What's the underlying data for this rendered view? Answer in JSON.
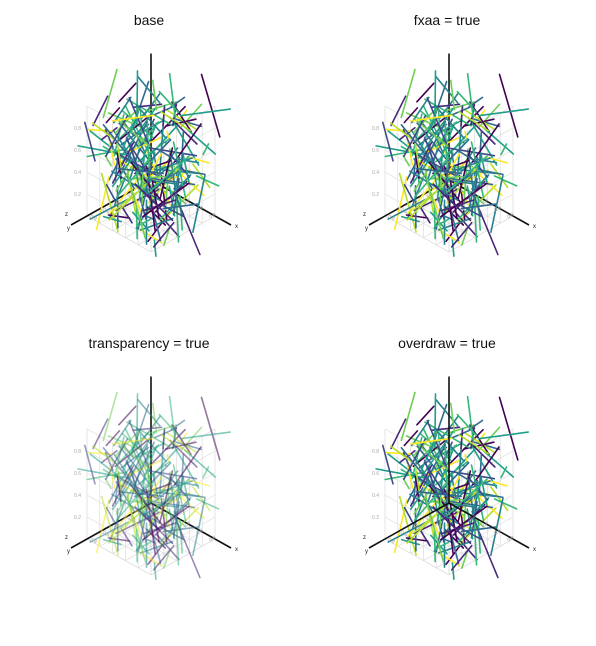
{
  "chart_data": [
    {
      "type": "line3d",
      "title": "base",
      "axes": {
        "x_label": "x",
        "y_label": "y",
        "z_label": "z",
        "x_ticks": [
          "0.2",
          "0.4",
          "0.6",
          "0.8"
        ],
        "y_ticks": [
          "0.2",
          "0.4",
          "0.6",
          "0.8"
        ],
        "z_ticks": [
          "0.2",
          "0.4",
          "0.6",
          "0.8"
        ],
        "range": [
          0,
          1
        ]
      },
      "colormap": "viridis",
      "grid": true,
      "segments": 200,
      "overdraw_axes": false
    },
    {
      "type": "line3d",
      "title": "fxaa = true",
      "axes": {
        "x_label": "x",
        "y_label": "y",
        "z_label": "z",
        "x_ticks": [
          "0.2",
          "0.4",
          "0.6",
          "0.8"
        ],
        "y_ticks": [
          "0.2",
          "0.4",
          "0.6",
          "0.8"
        ],
        "z_ticks": [
          "0.2",
          "0.4",
          "0.6",
          "0.8"
        ],
        "range": [
          0,
          1
        ]
      },
      "colormap": "viridis",
      "grid": true,
      "segments": 200,
      "overdraw_axes": false
    },
    {
      "type": "line3d",
      "title": "transparency = true",
      "axes": {
        "x_label": "x",
        "y_label": "y",
        "z_label": "z",
        "x_ticks": [
          "0.2",
          "0.4",
          "0.6",
          "0.8"
        ],
        "y_ticks": [
          "0.2",
          "0.4",
          "0.6",
          "0.8"
        ],
        "z_ticks": [
          "0.2",
          "0.4",
          "0.6",
          "0.8"
        ],
        "range": [
          0,
          1
        ]
      },
      "colormap": "viridis",
      "grid": true,
      "segments": 200,
      "overdraw_axes": false
    },
    {
      "type": "line3d",
      "title": "overdraw = true",
      "axes": {
        "x_label": "x",
        "y_label": "y",
        "z_label": "z",
        "x_ticks": [
          "0.2",
          "0.4",
          "0.6",
          "0.8"
        ],
        "y_ticks": [
          "0.2",
          "0.4",
          "0.6",
          "0.8"
        ],
        "z_ticks": [
          "0.2",
          "0.4",
          "0.6",
          "0.8"
        ],
        "range": [
          0,
          1
        ]
      },
      "colormap": "viridis",
      "grid": true,
      "segments": 200,
      "overdraw_axes": true
    }
  ]
}
